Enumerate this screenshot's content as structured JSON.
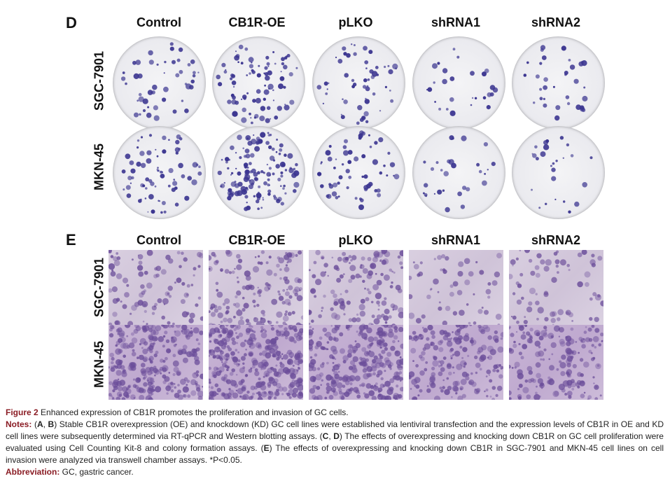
{
  "panel_d": {
    "letter": "D",
    "columns": [
      "Control",
      "CB1R-OE",
      "pLKO",
      "shRNA1",
      "shRNA2"
    ],
    "rows": [
      "SGC-7901",
      "MKN-45"
    ]
  },
  "panel_e": {
    "letter": "E",
    "columns": [
      "Control",
      "CB1R-OE",
      "pLKO",
      "shRNA1",
      "shRNA2"
    ],
    "rows": [
      "SGC-7901",
      "MKN-45"
    ]
  },
  "caption": {
    "figure_label": "Figure 2",
    "title": "Enhanced expression of CB1R promotes the proliferation and invasion of GC cells.",
    "notes_label": "Notes:",
    "notes_a_open": "(",
    "notes_a_letters": "A",
    "notes_a_sep": ", ",
    "notes_b_letters": "B",
    "notes_ab_text": ") Stable CB1R overexpression (OE) and knockdown (KD) GC cell lines were established via lentiviral transfection and the expression levels of CB1R in OE and KD cell lines were subsequently determined via RT-qPCR and Western blotting assays. (",
    "notes_c_letters": "C",
    "notes_cd_sep": ", ",
    "notes_d_letters": "D",
    "notes_cd_text": ") The effects of overexpressing and knocking down CB1R on GC cell proliferation were evaluated using Cell Counting Kit-8 and colony formation assays. (",
    "notes_e_letters": "E",
    "notes_e_text": ") The effects of overexpressing and knocking down CB1R in SGC-7901 and MKN-45 cell lines on cell invasion were analyzed via transwell chamber assays. *P<0.05.",
    "abbreviation_label": "Abbreviation:",
    "abbreviation_text": " GC, gastric cancer."
  },
  "colors": {
    "colony": "#3b3590",
    "stain": "#6b4d9a",
    "caption_label": "#8a1c24"
  }
}
